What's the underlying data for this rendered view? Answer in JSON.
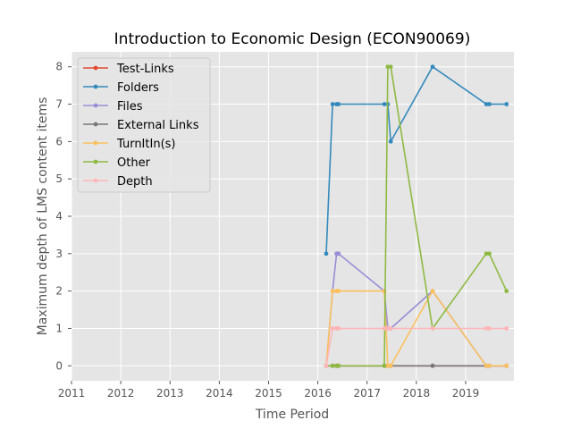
{
  "chart_data": {
    "type": "line",
    "title": "Introduction to Economic Design (ECON90069)",
    "xlabel": "Time Period",
    "ylabel": "Maximum depth of LMS content items",
    "xlim": [
      2011.0,
      2019.98
    ],
    "ylim": [
      -0.4,
      8.4
    ],
    "xticks": [
      2011,
      2012,
      2013,
      2014,
      2015,
      2016,
      2017,
      2018,
      2019
    ],
    "yticks": [
      0,
      1,
      2,
      3,
      4,
      5,
      6,
      7,
      8
    ],
    "grid": true,
    "background": "#e5e5e5",
    "legend_position": "upper-left",
    "series": [
      {
        "name": "Test-Links",
        "color": "#e24a33",
        "x": [
          2016.17,
          2016.3,
          2016.38,
          2016.42,
          2017.35,
          2017.42,
          2017.48,
          2018.33,
          2019.42,
          2019.48,
          2019.83
        ],
        "y": [
          0,
          0,
          0,
          0,
          0,
          0,
          0,
          0,
          0,
          0,
          0
        ]
      },
      {
        "name": "Folders",
        "color": "#348abd",
        "x": [
          2016.17,
          2016.3,
          2016.38,
          2016.42,
          2017.35,
          2017.42,
          2017.48,
          2018.33,
          2019.42,
          2019.48,
          2019.83
        ],
        "y": [
          3,
          7,
          7,
          7,
          7,
          7,
          6,
          8,
          7,
          7,
          7
        ]
      },
      {
        "name": "Files",
        "color": "#988ed5",
        "x": [
          2016.17,
          2016.3,
          2016.38,
          2016.42,
          2017.35,
          2017.42,
          2017.48,
          2018.33,
          2019.42,
          2019.48,
          2019.83
        ],
        "y": [
          0,
          2,
          3,
          3,
          2,
          1,
          1,
          2,
          0,
          0,
          0
        ]
      },
      {
        "name": "External Links",
        "color": "#777777",
        "x": [
          2016.17,
          2016.3,
          2016.38,
          2016.42,
          2017.35,
          2017.42,
          2017.48,
          2018.33,
          2019.42,
          2019.48,
          2019.83
        ],
        "y": [
          0,
          0,
          0,
          0,
          0,
          0,
          0,
          0,
          0,
          0,
          0
        ]
      },
      {
        "name": "TurnItIn(s)",
        "color": "#fbc15e",
        "x": [
          2016.17,
          2016.3,
          2016.38,
          2016.42,
          2017.35,
          2017.42,
          2017.48,
          2018.33,
          2019.42,
          2019.48,
          2019.83
        ],
        "y": [
          0,
          2,
          2,
          2,
          2,
          0,
          0,
          2,
          0,
          0,
          0
        ]
      },
      {
        "name": "Other",
        "color": "#8eba42",
        "x": [
          2016.17,
          2016.3,
          2016.38,
          2016.42,
          2017.35,
          2017.42,
          2017.48,
          2018.33,
          2019.42,
          2019.48,
          2019.83
        ],
        "y": [
          0,
          0,
          0,
          0,
          0,
          8,
          8,
          1,
          3,
          3,
          2
        ]
      },
      {
        "name": "Depth",
        "color": "#ffb5b8",
        "x": [
          2016.17,
          2016.3,
          2016.38,
          2016.42,
          2017.35,
          2017.42,
          2017.48,
          2018.33,
          2019.42,
          2019.48,
          2019.83
        ],
        "y": [
          0,
          1,
          1,
          1,
          1,
          1,
          1,
          1,
          1,
          1,
          1
        ]
      }
    ]
  }
}
